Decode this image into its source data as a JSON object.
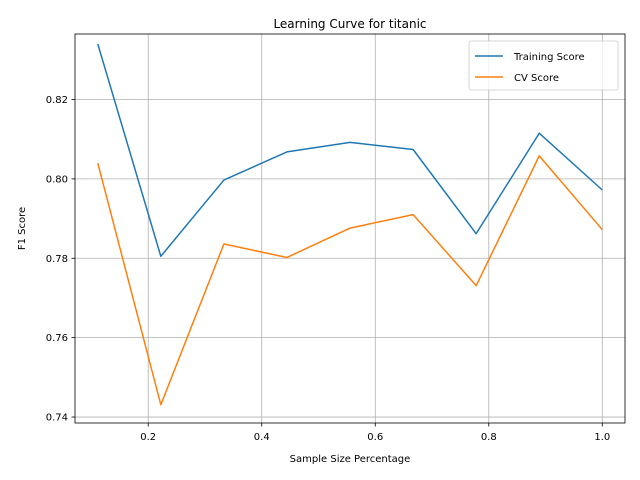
{
  "chart_data": {
    "type": "line",
    "title": "Learning Curve for titanic",
    "xlabel": "Sample Size Percentage",
    "ylabel": "F1 Score",
    "xlim": [
      0.071,
      1.04
    ],
    "ylim": [
      0.7385,
      0.8365
    ],
    "x_ticks": [
      0.2,
      0.4,
      0.6,
      0.8,
      1.0
    ],
    "x_tick_labels": [
      "0.2",
      "0.4",
      "0.6",
      "0.8",
      "1.0"
    ],
    "y_ticks": [
      0.74,
      0.76,
      0.78,
      0.8,
      0.82
    ],
    "y_tick_labels": [
      "0.74",
      "0.76",
      "0.78",
      "0.80",
      "0.82"
    ],
    "grid": true,
    "legend_position": "upper right",
    "x": [
      0.1111,
      0.2222,
      0.3333,
      0.4444,
      0.5556,
      0.6667,
      0.7778,
      0.8889,
      1.0
    ],
    "series": [
      {
        "name": "Training Score",
        "color": "#1f77b4",
        "values": [
          0.834,
          0.7805,
          0.7997,
          0.8068,
          0.8092,
          0.8074,
          0.7862,
          0.8115,
          0.7972
        ]
      },
      {
        "name": "CV Score",
        "color": "#ff7f0e",
        "values": [
          0.804,
          0.7431,
          0.7836,
          0.7802,
          0.7876,
          0.791,
          0.7731,
          0.8058,
          0.7872
        ]
      }
    ]
  }
}
